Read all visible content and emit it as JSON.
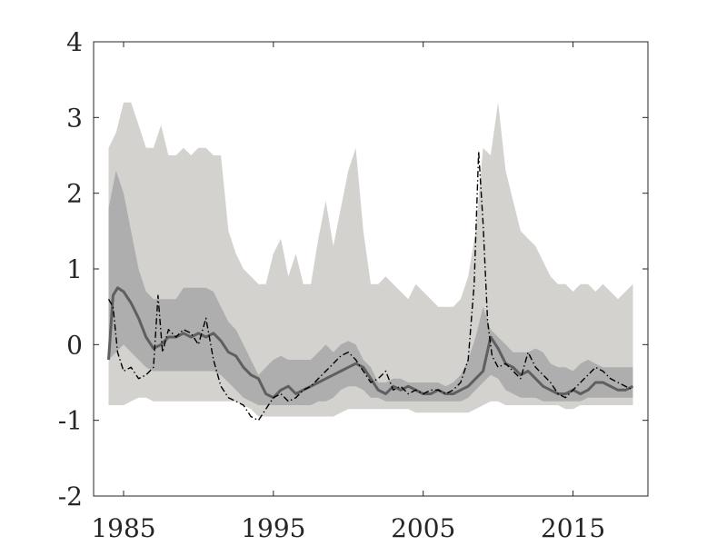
{
  "chart_data": {
    "type": "area",
    "title": "",
    "xlabel": "",
    "ylabel": "",
    "xlim": [
      1983,
      2020
    ],
    "ylim": [
      -2,
      4
    ],
    "x_ticks": [
      1985,
      1995,
      2005,
      2015
    ],
    "x_tick_labels": [
      "1985",
      "1995",
      "2005",
      "2015"
    ],
    "y_ticks": [
      -2,
      -1,
      0,
      1,
      2,
      3,
      4
    ],
    "y_tick_labels": [
      "-2",
      "-1",
      "0",
      "1",
      "2",
      "3",
      "4"
    ],
    "grid": false,
    "legend": "none",
    "colors": {
      "outer_band": "#d4d2cf",
      "inner_band": "#aeaeae",
      "median_line": "#5f5f5f",
      "dashdot_line": "#000000",
      "axis": "#262626",
      "background": "#ffffff"
    },
    "bands": [
      {
        "style": "outer-shaded",
        "x": [
          1984.0,
          1984.5,
          1985.0,
          1985.5,
          1986.0,
          1986.5,
          1987.0,
          1987.5,
          1988.0,
          1988.5,
          1989.0,
          1989.5,
          1990.0,
          1990.5,
          1991.0,
          1991.5,
          1992.0,
          1992.5,
          1993.0,
          1993.5,
          1994.0,
          1994.5,
          1995.0,
          1995.5,
          1996.0,
          1996.5,
          1997.0,
          1997.5,
          1998.0,
          1998.5,
          1999.0,
          1999.5,
          2000.0,
          2000.5,
          2001.0,
          2001.5,
          2002.0,
          2002.5,
          2003.0,
          2003.5,
          2004.0,
          2004.5,
          2005.0,
          2005.5,
          2006.0,
          2006.5,
          2007.0,
          2007.5,
          2008.0,
          2008.5,
          2009.0,
          2009.5,
          2010.0,
          2010.5,
          2011.0,
          2011.5,
          2012.0,
          2012.5,
          2013.0,
          2013.5,
          2014.0,
          2014.5,
          2015.0,
          2015.5,
          2016.0,
          2016.5,
          2017.0,
          2017.5,
          2018.0,
          2018.5,
          2019.0
        ],
        "upper": [
          2.6,
          2.8,
          3.2,
          3.2,
          2.9,
          2.6,
          2.6,
          2.9,
          2.5,
          2.5,
          2.6,
          2.5,
          2.6,
          2.6,
          2.5,
          2.5,
          1.5,
          1.2,
          1.0,
          0.9,
          0.8,
          0.8,
          1.2,
          1.4,
          0.9,
          1.2,
          0.8,
          0.8,
          1.4,
          1.9,
          1.3,
          1.8,
          2.3,
          2.6,
          1.5,
          0.8,
          0.8,
          0.9,
          0.8,
          0.7,
          0.6,
          0.8,
          0.7,
          0.6,
          0.5,
          0.5,
          0.5,
          0.6,
          0.9,
          1.5,
          2.6,
          2.5,
          3.2,
          2.3,
          1.9,
          1.5,
          1.4,
          1.3,
          1.1,
          0.9,
          0.8,
          0.8,
          0.7,
          0.8,
          0.8,
          0.7,
          0.8,
          0.7,
          0.6,
          0.7,
          0.8
        ],
        "lower": [
          -0.8,
          -0.8,
          -0.8,
          -0.75,
          -0.7,
          -0.7,
          -0.75,
          -0.75,
          -0.75,
          -0.75,
          -0.75,
          -0.75,
          -0.75,
          -0.75,
          -0.75,
          -0.75,
          -0.75,
          -0.75,
          -0.8,
          -0.85,
          -0.95,
          -0.95,
          -0.95,
          -0.95,
          -0.95,
          -0.95,
          -0.95,
          -0.95,
          -0.95,
          -0.95,
          -0.95,
          -0.9,
          -0.85,
          -0.85,
          -0.85,
          -0.85,
          -0.85,
          -0.85,
          -0.85,
          -0.85,
          -0.85,
          -0.9,
          -0.9,
          -0.9,
          -0.9,
          -0.9,
          -0.9,
          -0.9,
          -0.9,
          -0.85,
          -0.8,
          -0.75,
          -0.75,
          -0.8,
          -0.8,
          -0.8,
          -0.8,
          -0.8,
          -0.8,
          -0.8,
          -0.8,
          -0.85,
          -0.85,
          -0.8,
          -0.8,
          -0.8,
          -0.8,
          -0.8,
          -0.8,
          -0.8,
          -0.8
        ]
      },
      {
        "style": "inner-shaded",
        "x": [
          1984.0,
          1984.5,
          1985.0,
          1985.5,
          1986.0,
          1986.5,
          1987.0,
          1987.5,
          1988.0,
          1988.5,
          1989.0,
          1989.5,
          1990.0,
          1990.5,
          1991.0,
          1991.5,
          1992.0,
          1992.5,
          1993.0,
          1993.5,
          1994.0,
          1994.5,
          1995.0,
          1995.5,
          1996.0,
          1996.5,
          1997.0,
          1997.5,
          1998.0,
          1998.5,
          1999.0,
          1999.5,
          2000.0,
          2000.5,
          2001.0,
          2001.5,
          2002.0,
          2002.5,
          2003.0,
          2003.5,
          2004.0,
          2004.5,
          2005.0,
          2005.5,
          2006.0,
          2006.5,
          2007.0,
          2007.5,
          2008.0,
          2008.5,
          2009.0,
          2009.5,
          2010.0,
          2010.5,
          2011.0,
          2011.5,
          2012.0,
          2012.5,
          2013.0,
          2013.5,
          2014.0,
          2014.5,
          2015.0,
          2015.5,
          2016.0,
          2016.5,
          2017.0,
          2017.5,
          2018.0,
          2018.5,
          2019.0
        ],
        "upper": [
          1.8,
          2.3,
          2.0,
          1.5,
          1.0,
          0.7,
          0.6,
          0.6,
          0.6,
          0.6,
          0.75,
          0.75,
          0.75,
          0.75,
          0.7,
          0.5,
          0.3,
          0.2,
          0.0,
          -0.2,
          -0.4,
          -0.3,
          -0.2,
          -0.15,
          -0.2,
          -0.2,
          -0.2,
          -0.2,
          -0.1,
          0.0,
          -0.1,
          0.0,
          0.05,
          0.0,
          -0.2,
          -0.3,
          -0.5,
          -0.5,
          -0.45,
          -0.45,
          -0.5,
          -0.5,
          -0.5,
          -0.5,
          -0.5,
          -0.55,
          -0.5,
          -0.4,
          -0.2,
          0.1,
          0.5,
          0.2,
          0.1,
          0.0,
          -0.1,
          -0.1,
          -0.1,
          -0.05,
          -0.1,
          -0.25,
          -0.3,
          -0.3,
          -0.35,
          -0.25,
          -0.2,
          -0.25,
          -0.3,
          -0.3,
          -0.3,
          -0.3,
          -0.3
        ],
        "lower": [
          -0.2,
          -0.1,
          0.0,
          -0.1,
          -0.2,
          -0.3,
          -0.35,
          -0.35,
          -0.35,
          -0.35,
          -0.35,
          -0.35,
          -0.35,
          -0.35,
          -0.35,
          -0.4,
          -0.5,
          -0.6,
          -0.7,
          -0.75,
          -0.8,
          -0.8,
          -0.8,
          -0.8,
          -0.8,
          -0.8,
          -0.8,
          -0.8,
          -0.75,
          -0.75,
          -0.7,
          -0.6,
          -0.55,
          -0.55,
          -0.6,
          -0.7,
          -0.7,
          -0.75,
          -0.75,
          -0.75,
          -0.75,
          -0.75,
          -0.75,
          -0.75,
          -0.75,
          -0.75,
          -0.75,
          -0.75,
          -0.7,
          -0.6,
          -0.5,
          -0.4,
          -0.45,
          -0.6,
          -0.65,
          -0.7,
          -0.7,
          -0.7,
          -0.75,
          -0.75,
          -0.75,
          -0.75,
          -0.75,
          -0.75,
          -0.7,
          -0.7,
          -0.7,
          -0.7,
          -0.7,
          -0.7,
          -0.7
        ]
      }
    ],
    "series": [
      {
        "style": "solid-gray",
        "x": [
          1984.0,
          1984.3,
          1984.6,
          1985.0,
          1985.5,
          1986.0,
          1986.5,
          1987.0,
          1987.5,
          1988.0,
          1988.5,
          1989.0,
          1989.5,
          1990.0,
          1990.5,
          1991.0,
          1991.5,
          1992.0,
          1992.5,
          1993.0,
          1993.5,
          1994.0,
          1994.5,
          1995.0,
          1995.5,
          1996.0,
          1996.5,
          1997.0,
          1997.5,
          1998.0,
          1998.5,
          1999.0,
          1999.5,
          2000.0,
          2000.5,
          2001.0,
          2001.5,
          2002.0,
          2002.5,
          2003.0,
          2003.5,
          2004.0,
          2004.5,
          2005.0,
          2005.5,
          2006.0,
          2006.5,
          2007.0,
          2007.5,
          2008.0,
          2008.5,
          2009.0,
          2009.5,
          2010.0,
          2010.5,
          2011.0,
          2011.5,
          2012.0,
          2012.5,
          2013.0,
          2013.5,
          2014.0,
          2014.5,
          2015.0,
          2015.5,
          2016.0,
          2016.5,
          2017.0,
          2017.5,
          2018.0,
          2018.5,
          2019.0
        ],
        "y": [
          -0.2,
          0.65,
          0.75,
          0.7,
          0.55,
          0.35,
          0.1,
          -0.05,
          0.0,
          0.1,
          0.1,
          0.15,
          0.1,
          0.15,
          0.1,
          0.15,
          0.05,
          -0.1,
          -0.15,
          -0.3,
          -0.4,
          -0.45,
          -0.65,
          -0.7,
          -0.6,
          -0.55,
          -0.65,
          -0.6,
          -0.55,
          -0.5,
          -0.45,
          -0.4,
          -0.35,
          -0.3,
          -0.25,
          -0.3,
          -0.45,
          -0.6,
          -0.65,
          -0.55,
          -0.6,
          -0.55,
          -0.6,
          -0.65,
          -0.65,
          -0.6,
          -0.65,
          -0.65,
          -0.6,
          -0.55,
          -0.45,
          -0.35,
          0.1,
          -0.05,
          -0.25,
          -0.3,
          -0.4,
          -0.35,
          -0.45,
          -0.55,
          -0.6,
          -0.65,
          -0.65,
          -0.6,
          -0.65,
          -0.6,
          -0.5,
          -0.5,
          -0.55,
          -0.6,
          -0.6,
          -0.55
        ]
      },
      {
        "style": "dashdot-black",
        "x": [
          1984.0,
          1984.3,
          1984.6,
          1985.0,
          1985.5,
          1986.0,
          1986.5,
          1987.0,
          1987.3,
          1987.6,
          1988.0,
          1988.5,
          1989.0,
          1989.5,
          1990.0,
          1990.5,
          1991.0,
          1991.5,
          1992.0,
          1992.5,
          1993.0,
          1993.5,
          1994.0,
          1994.5,
          1995.0,
          1995.5,
          1996.0,
          1996.5,
          1997.0,
          1997.5,
          1998.0,
          1998.5,
          1999.0,
          1999.5,
          2000.0,
          2000.5,
          2001.0,
          2001.5,
          2002.0,
          2002.5,
          2003.0,
          2003.5,
          2004.0,
          2004.5,
          2005.0,
          2005.5,
          2006.0,
          2006.5,
          2007.0,
          2007.5,
          2008.0,
          2008.4,
          2008.7,
          2009.0,
          2009.3,
          2009.6,
          2010.0,
          2010.5,
          2011.0,
          2011.5,
          2012.0,
          2012.5,
          2013.0,
          2013.5,
          2014.0,
          2014.5,
          2015.0,
          2015.5,
          2016.0,
          2016.5,
          2017.0,
          2017.5,
          2018.0,
          2018.5,
          2019.0
        ],
        "y": [
          0.6,
          0.5,
          -0.1,
          -0.35,
          -0.3,
          -0.45,
          -0.4,
          -0.3,
          0.65,
          -0.1,
          0.2,
          0.1,
          0.2,
          0.15,
          0.0,
          0.35,
          -0.2,
          -0.55,
          -0.7,
          -0.75,
          -0.8,
          -0.95,
          -1.0,
          -0.85,
          -0.7,
          -0.65,
          -0.75,
          -0.7,
          -0.6,
          -0.55,
          -0.45,
          -0.35,
          -0.25,
          -0.15,
          -0.1,
          -0.2,
          -0.35,
          -0.5,
          -0.45,
          -0.35,
          -0.6,
          -0.55,
          -0.65,
          -0.6,
          -0.65,
          -0.6,
          -0.6,
          -0.65,
          -0.6,
          -0.5,
          -0.2,
          0.8,
          2.55,
          1.6,
          0.3,
          -0.15,
          -0.3,
          -0.25,
          -0.35,
          -0.45,
          -0.1,
          -0.3,
          -0.4,
          -0.5,
          -0.65,
          -0.7,
          -0.6,
          -0.5,
          -0.4,
          -0.3,
          -0.35,
          -0.45,
          -0.5,
          -0.55,
          -0.6
        ]
      }
    ]
  }
}
